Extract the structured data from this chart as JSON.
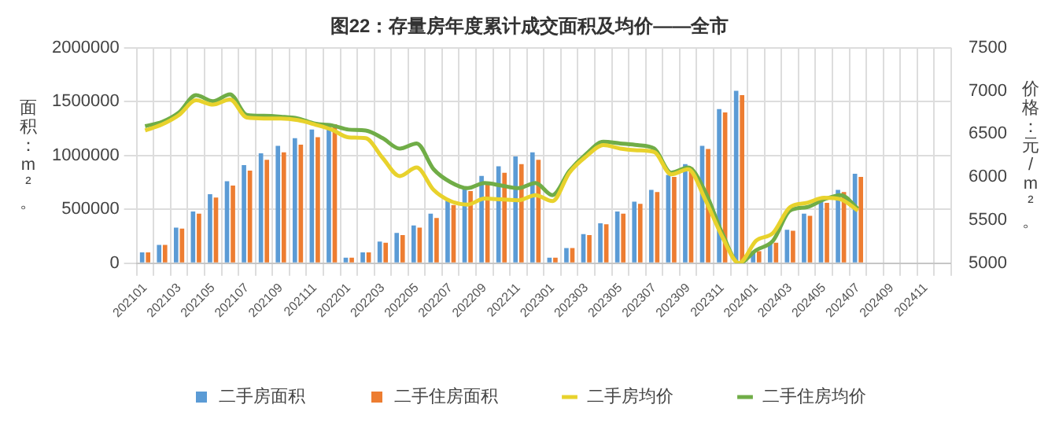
{
  "chart_data": {
    "type": "bar",
    "title": "图22：存量房年度累计成交面积及均价——全市",
    "ylabel": "面积：m²。",
    "y2label": "价格：元/m²。",
    "categories": [
      "202101",
      null,
      "202103",
      null,
      "202105",
      null,
      "202107",
      null,
      "202109",
      null,
      "202111",
      null,
      "202201",
      null,
      "202203",
      null,
      "202205",
      null,
      "202207",
      null,
      "202209",
      null,
      "202211",
      null,
      "202301",
      null,
      "202303",
      null,
      "202305",
      null,
      "202307",
      null,
      "202309",
      null,
      "202311",
      null,
      "202401",
      null,
      "202403",
      null,
      "202405",
      null,
      "202407",
      null,
      "202409",
      null,
      "202411",
      null
    ],
    "series": [
      {
        "name": "二手房面积",
        "color": "#5b9bd5",
        "values": [
          100000,
          170000,
          330000,
          480000,
          640000,
          760000,
          910000,
          1020000,
          1090000,
          1160000,
          1240000,
          1300000,
          50000,
          100000,
          200000,
          280000,
          350000,
          460000,
          580000,
          700000,
          810000,
          900000,
          990000,
          1030000,
          50000,
          140000,
          270000,
          370000,
          480000,
          570000,
          680000,
          820000,
          920000,
          1090000,
          1430000,
          1600000,
          110000,
          190000,
          310000,
          460000,
          570000,
          680000,
          830000,
          null,
          null,
          null,
          null,
          null
        ]
      },
      {
        "name": "二手住房面积",
        "color": "#ed7d31",
        "values": [
          100000,
          170000,
          320000,
          460000,
          610000,
          720000,
          860000,
          960000,
          1030000,
          1100000,
          1170000,
          1290000,
          50000,
          100000,
          190000,
          260000,
          330000,
          420000,
          540000,
          670000,
          750000,
          840000,
          920000,
          960000,
          50000,
          140000,
          260000,
          360000,
          460000,
          550000,
          660000,
          800000,
          890000,
          1060000,
          1400000,
          1560000,
          110000,
          190000,
          300000,
          440000,
          560000,
          660000,
          800000,
          null,
          null,
          null,
          null,
          null
        ]
      },
      {
        "name": "二手房均价",
        "type": "line",
        "axis": "y2",
        "color": "#e8d22c",
        "values": [
          6540,
          6610,
          6720,
          6890,
          6840,
          6900,
          6690,
          6680,
          6680,
          6660,
          6610,
          6550,
          6460,
          6450,
          6220,
          6010,
          6110,
          5850,
          5720,
          5680,
          5750,
          5740,
          5730,
          5790,
          5720,
          6050,
          6240,
          6370,
          6330,
          6310,
          6290,
          6030,
          6090,
          5740,
          5310,
          5000,
          5260,
          5350,
          5650,
          5700,
          5760,
          5740,
          5610,
          null,
          null,
          null,
          null,
          null
        ]
      },
      {
        "name": "二手住房均价",
        "type": "line",
        "axis": "y2",
        "color": "#70ad47",
        "values": [
          6590,
          6640,
          6750,
          6950,
          6880,
          6960,
          6720,
          6710,
          6700,
          6680,
          6620,
          6600,
          6550,
          6540,
          6450,
          6330,
          6390,
          6090,
          5940,
          5870,
          5930,
          5900,
          5870,
          5930,
          5790,
          6070,
          6270,
          6410,
          6390,
          6370,
          6330,
          6050,
          6110,
          5830,
          5350,
          5000,
          5150,
          5260,
          5610,
          5650,
          5740,
          5790,
          5630,
          null,
          null,
          null,
          null,
          null
        ]
      }
    ],
    "ylim": [
      0,
      2000000
    ],
    "yticks": [
      0,
      500000,
      1000000,
      1500000,
      2000000
    ],
    "y2lim": [
      5000,
      7500
    ],
    "y2ticks": [
      5000,
      5500,
      6000,
      6500,
      7000,
      7500
    ],
    "grid": true,
    "legend": "bottom",
    "marker": "none",
    "line_style": "solid"
  }
}
